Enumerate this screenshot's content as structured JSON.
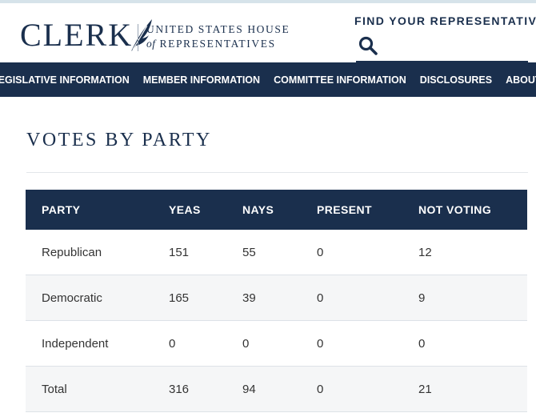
{
  "header": {
    "logo_word": "CLERK",
    "logo_sub_line1": "UNITED STATES HOUSE",
    "logo_sub_of": "of",
    "logo_sub_line2": "REPRESENTATIVES",
    "find_label": "FIND YOUR REPRESENTATIVE",
    "search_value": "",
    "search_placeholder": ""
  },
  "nav": {
    "items": [
      {
        "label": "LEGISLATIVE INFORMATION"
      },
      {
        "label": "MEMBER INFORMATION"
      },
      {
        "label": "COMMITTEE INFORMATION"
      },
      {
        "label": "DISCLOSURES"
      },
      {
        "label": "ABOUT THE CLERK"
      }
    ]
  },
  "main": {
    "title": "VOTES BY PARTY",
    "table": {
      "headers": [
        "PARTY",
        "YEAS",
        "NAYS",
        "PRESENT",
        "NOT VOTING"
      ],
      "rows": [
        [
          "Republican",
          "151",
          "55",
          "0",
          "12"
        ],
        [
          "Democratic",
          "165",
          "39",
          "0",
          "9"
        ],
        [
          "Independent",
          "0",
          "0",
          "0",
          "0"
        ],
        [
          "Total",
          "316",
          "94",
          "0",
          "21"
        ]
      ]
    }
  },
  "colors": {
    "navy": "#1a2f4d",
    "top_strip": "#d6e3ea",
    "row_alt": "#f5f6f7"
  },
  "icons": {
    "logo_mark": "quill-feather-icon",
    "search": "search-icon"
  }
}
